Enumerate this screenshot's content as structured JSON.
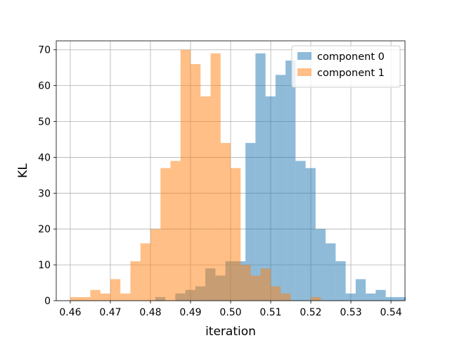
{
  "chart_data": {
    "type": "bar",
    "title": "",
    "xlabel": "iteration",
    "ylabel": "KL",
    "xlim": [
      0.4565,
      0.5435
    ],
    "ylim": [
      0,
      72.5
    ],
    "xticks": [
      0.46,
      0.47,
      0.48,
      0.49,
      0.5,
      0.51,
      0.52,
      0.53,
      0.54
    ],
    "xtick_labels": [
      "0.46",
      "0.47",
      "0.48",
      "0.49",
      "0.50",
      "0.51",
      "0.52",
      "0.53",
      "0.54"
    ],
    "yticks": [
      0,
      10,
      20,
      30,
      40,
      50,
      60,
      70
    ],
    "ytick_labels": [
      "0",
      "10",
      "20",
      "30",
      "40",
      "50",
      "60",
      "70"
    ],
    "grid": true,
    "legend_position": "top-right",
    "series": [
      {
        "name": "component 0",
        "color": "#1f77b4",
        "alpha": 0.5,
        "bin_start": 0.4812,
        "bin_width": 0.0025,
        "counts": [
          1,
          0,
          2,
          3,
          4,
          9,
          7,
          11,
          11,
          44,
          69,
          57,
          63,
          67,
          39,
          37,
          20,
          16,
          11,
          2,
          6,
          2,
          3,
          1,
          1
        ]
      },
      {
        "name": "component 1",
        "color": "#ff7f0e",
        "alpha": 0.5,
        "bin_start": 0.46,
        "bin_width": 0.0025,
        "counts": [
          1,
          1,
          3,
          2,
          6,
          2,
          11,
          16,
          20,
          37,
          39,
          70,
          66,
          57,
          69,
          44,
          37,
          10,
          7,
          9,
          4,
          2,
          0,
          0,
          1
        ]
      }
    ]
  }
}
